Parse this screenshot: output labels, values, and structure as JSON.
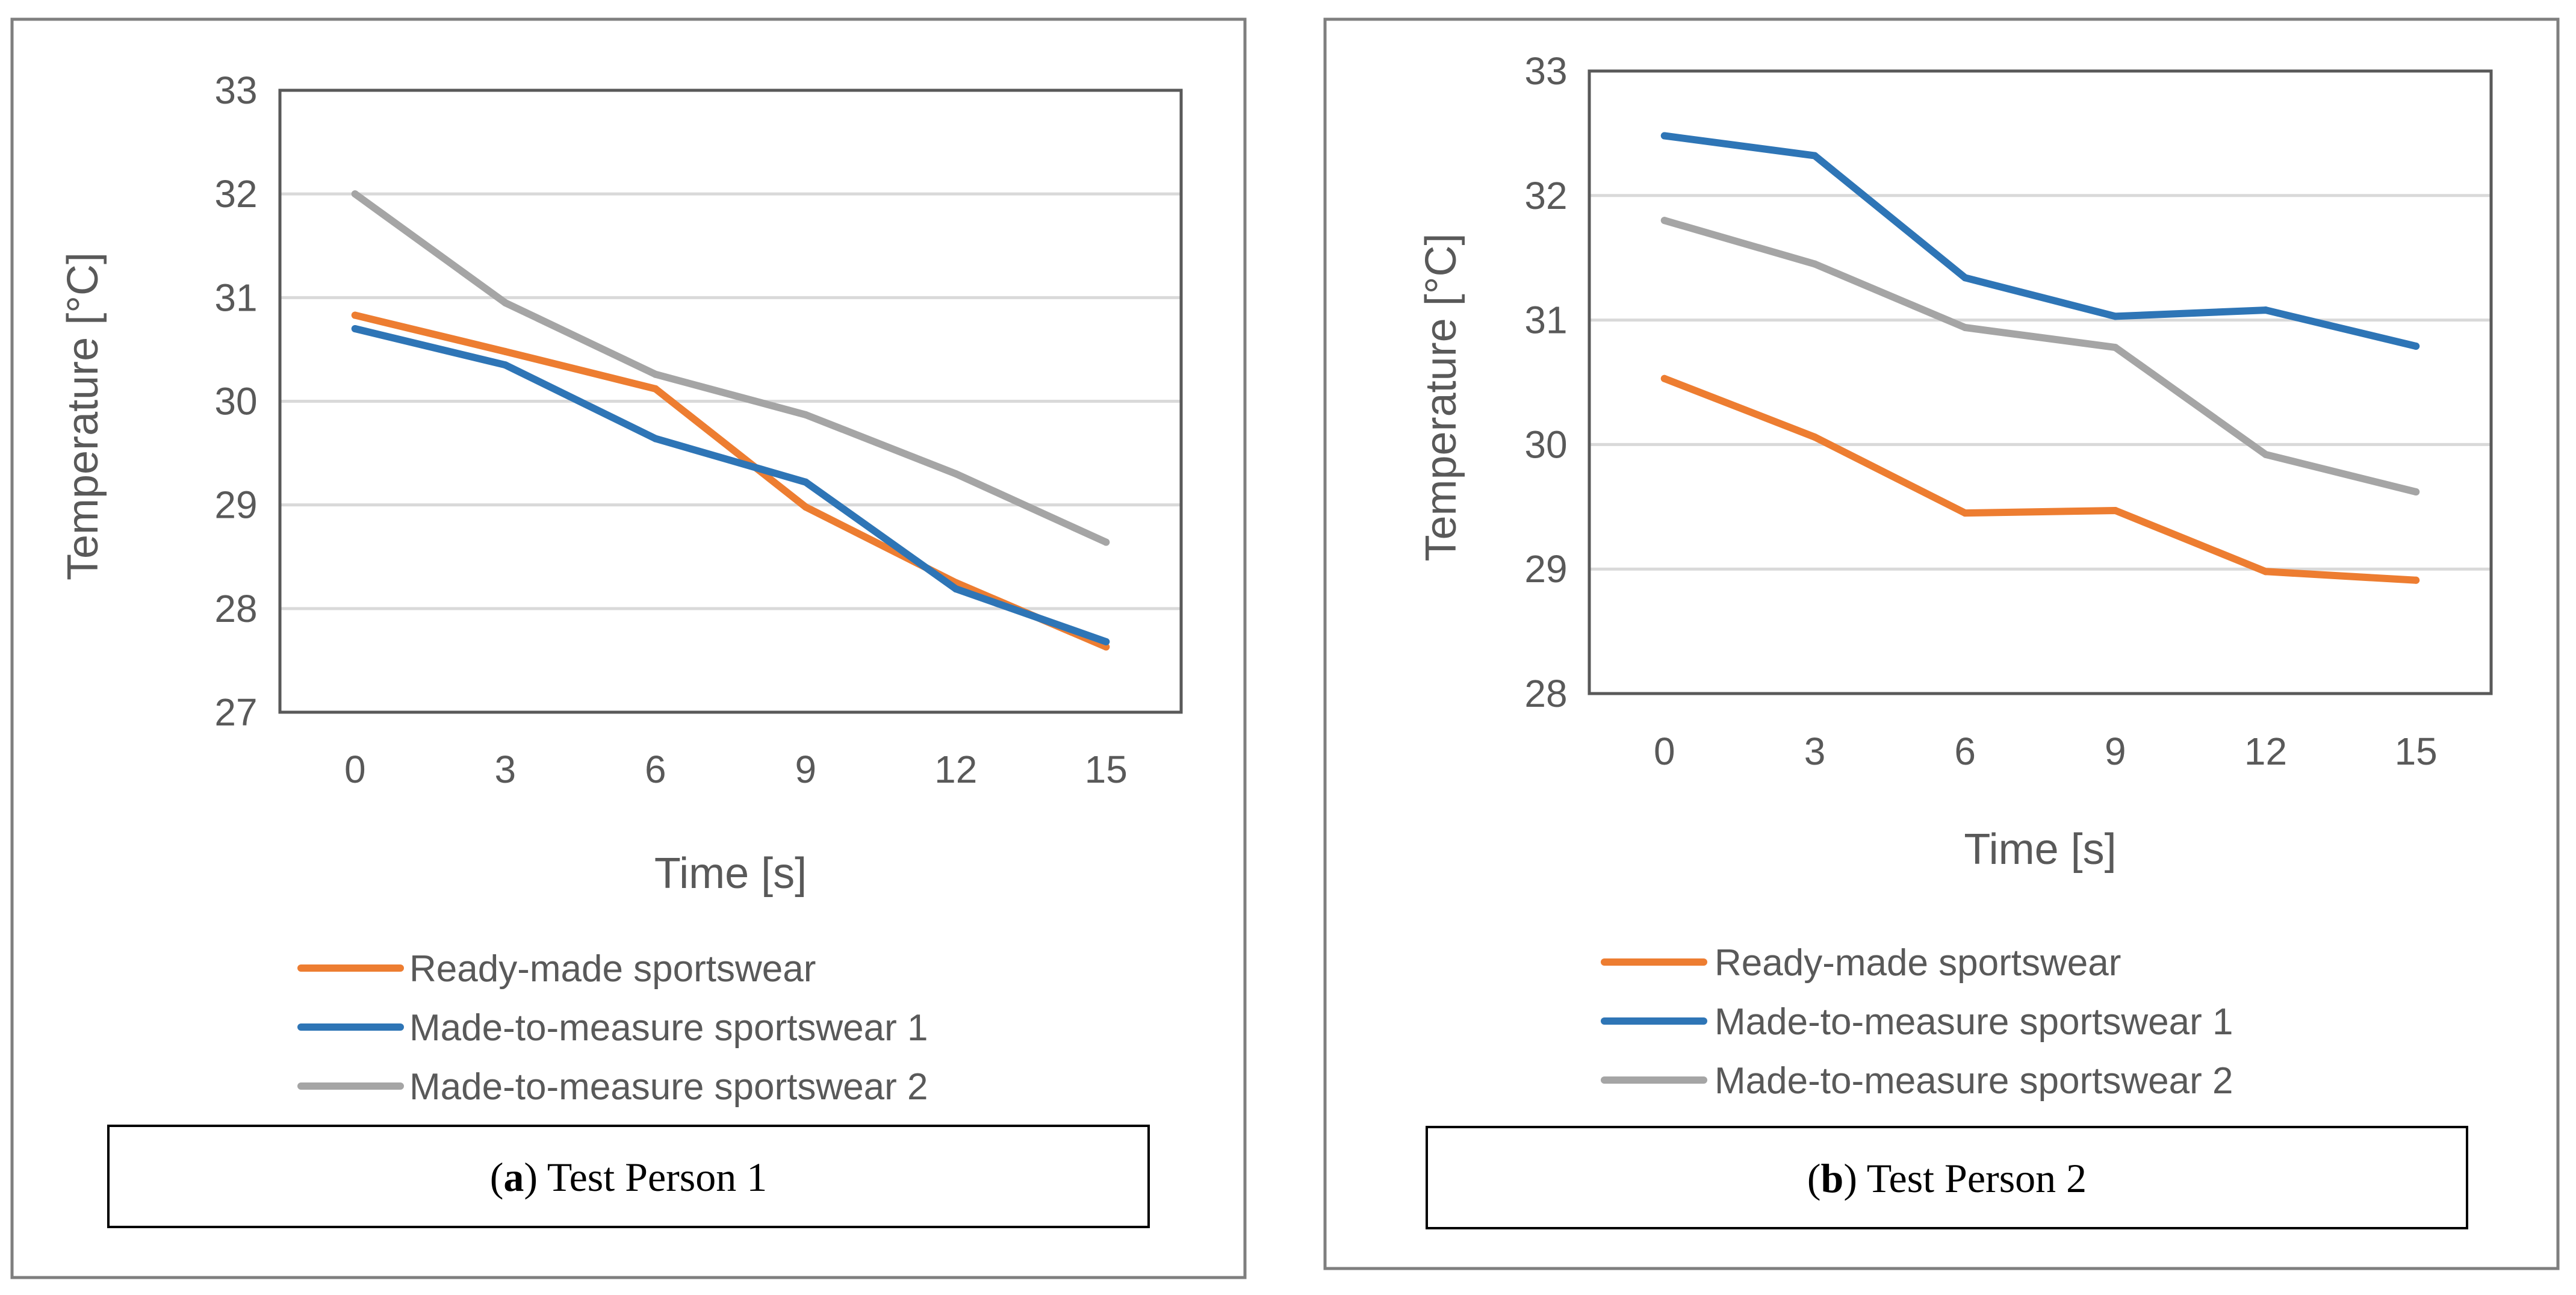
{
  "colors": {
    "ready_made": "#ED7D31",
    "made_to_measure_1": "#2E75B6",
    "made_to_measure_2": "#A5A5A5",
    "gridline": "#D9D9D9",
    "axis_text": "#595959",
    "plot_border": "#595959",
    "panel_border": "#7F7F7F"
  },
  "chart_data": [
    {
      "type": "line",
      "panel": "a",
      "caption": {
        "letter": "a",
        "text": "Test Person 1"
      },
      "title": "",
      "xlabel": "Time [s]",
      "ylabel": "Temperature [°C]",
      "ylim": [
        27,
        33
      ],
      "yticks": [
        "27",
        "28",
        "29",
        "30",
        "31",
        "32",
        "33"
      ],
      "grid": true,
      "legend_position": "bottom",
      "categories": [
        "0",
        "3",
        "6",
        "9",
        "12",
        "15"
      ],
      "series": [
        {
          "name": "Ready-made sportswear",
          "color_key": "ready_made",
          "values": [
            30.83,
            30.48,
            30.12,
            28.98,
            28.25,
            27.63
          ]
        },
        {
          "name": "Made-to-measure sportswear 1",
          "color_key": "made_to_measure_1",
          "values": [
            30.7,
            30.35,
            29.64,
            29.22,
            28.19,
            27.68
          ]
        },
        {
          "name": "Made-to-measure sportswear 2",
          "color_key": "made_to_measure_2",
          "values": [
            32.0,
            30.95,
            30.26,
            29.87,
            29.3,
            28.64
          ]
        }
      ]
    },
    {
      "type": "line",
      "panel": "b",
      "caption": {
        "letter": "b",
        "text": "Test Person 2"
      },
      "title": "",
      "xlabel": "Time [s]",
      "ylabel": "Temperature [°C]",
      "ylim": [
        28,
        33
      ],
      "yticks": [
        "28",
        "29",
        "30",
        "31",
        "32",
        "33"
      ],
      "grid": true,
      "legend_position": "bottom",
      "categories": [
        "0",
        "3",
        "6",
        "9",
        "12",
        "15"
      ],
      "series": [
        {
          "name": "Ready-made sportswear",
          "color_key": "ready_made",
          "values": [
            30.53,
            30.06,
            29.45,
            29.47,
            28.98,
            28.91
          ]
        },
        {
          "name": "Made-to-measure sportswear 1",
          "color_key": "made_to_measure_1",
          "values": [
            32.48,
            32.32,
            31.34,
            31.03,
            31.08,
            30.79
          ]
        },
        {
          "name": "Made-to-measure sportswear 2",
          "color_key": "made_to_measure_2",
          "values": [
            31.8,
            31.45,
            30.94,
            30.78,
            29.92,
            29.62
          ]
        }
      ]
    }
  ]
}
